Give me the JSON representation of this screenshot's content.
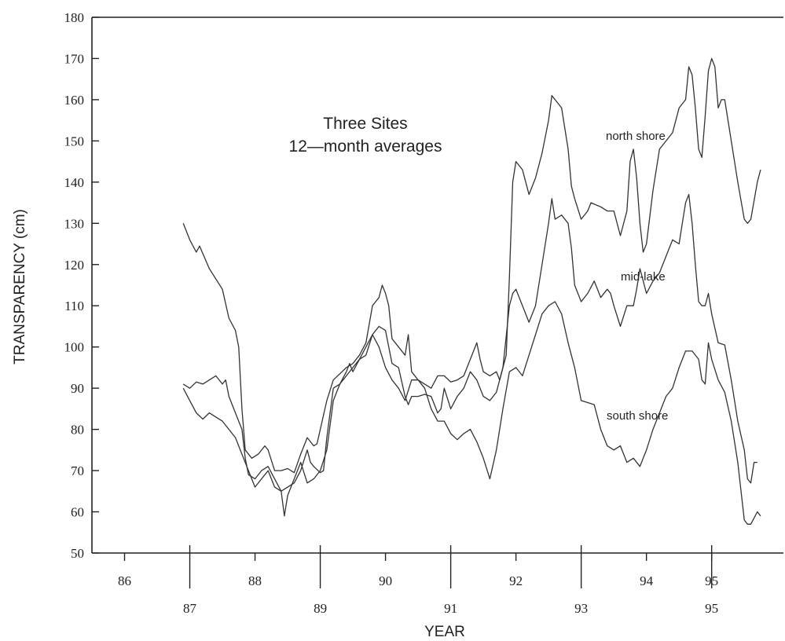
{
  "chart_data": {
    "type": "line",
    "title_lines": [
      "Three Sites",
      "12—month averages"
    ],
    "xlabel": "YEAR",
    "ylabel": "TRANSPARENCY (cm)",
    "xlim": [
      85.5,
      96.1
    ],
    "ylim": [
      50,
      180
    ],
    "x_ticks_upper": [
      "86",
      "88",
      "90",
      "92",
      "94",
      "95"
    ],
    "x_ticks_upper_values": [
      86,
      88,
      90,
      92,
      94,
      95
    ],
    "x_ticks_lower": [
      "87",
      "89",
      "91",
      "93",
      "95"
    ],
    "x_ticks_lower_values": [
      87,
      89,
      91,
      93,
      95
    ],
    "y_ticks": [
      50,
      60,
      70,
      80,
      90,
      100,
      110,
      120,
      130,
      140,
      150,
      160,
      170,
      180
    ],
    "grid": false,
    "legend": "none",
    "series": [
      {
        "name": "north shore",
        "points": [
          [
            86.9,
            130
          ],
          [
            87.0,
            126
          ],
          [
            87.1,
            123
          ],
          [
            87.15,
            124.5
          ],
          [
            87.3,
            119
          ],
          [
            87.5,
            114
          ],
          [
            87.6,
            107
          ],
          [
            87.7,
            104
          ],
          [
            87.75,
            100
          ],
          [
            87.8,
            85
          ],
          [
            87.85,
            75
          ],
          [
            87.95,
            73
          ],
          [
            88.05,
            74
          ],
          [
            88.15,
            76
          ],
          [
            88.2,
            75
          ],
          [
            88.3,
            70
          ],
          [
            88.4,
            70
          ],
          [
            88.5,
            70.5
          ],
          [
            88.6,
            69.5
          ],
          [
            88.7,
            74
          ],
          [
            88.8,
            78
          ],
          [
            88.9,
            76
          ],
          [
            88.95,
            76.5
          ],
          [
            89.0,
            80
          ],
          [
            89.1,
            87
          ],
          [
            89.2,
            92
          ],
          [
            89.3,
            93.5
          ],
          [
            89.4,
            95
          ],
          [
            89.5,
            96
          ],
          [
            89.6,
            98
          ],
          [
            89.7,
            101
          ],
          [
            89.8,
            110
          ],
          [
            89.85,
            111
          ],
          [
            89.9,
            112
          ],
          [
            89.95,
            115
          ],
          [
            90.0,
            113
          ],
          [
            90.05,
            110
          ],
          [
            90.1,
            102
          ],
          [
            90.2,
            100
          ],
          [
            90.3,
            98
          ],
          [
            90.35,
            103
          ],
          [
            90.4,
            94
          ],
          [
            90.5,
            92
          ],
          [
            90.6,
            91
          ],
          [
            90.7,
            90
          ],
          [
            90.8,
            93
          ],
          [
            90.9,
            93
          ],
          [
            91.0,
            91.5
          ],
          [
            91.1,
            92
          ],
          [
            91.2,
            93
          ],
          [
            91.3,
            97
          ],
          [
            91.4,
            101
          ],
          [
            91.45,
            97
          ],
          [
            91.5,
            94
          ],
          [
            91.6,
            93
          ],
          [
            91.7,
            94
          ],
          [
            91.75,
            92
          ],
          [
            91.85,
            98
          ],
          [
            91.9,
            117
          ],
          [
            91.95,
            140
          ],
          [
            92.0,
            145
          ],
          [
            92.1,
            143
          ],
          [
            92.2,
            137
          ],
          [
            92.3,
            141
          ],
          [
            92.4,
            147
          ],
          [
            92.5,
            155
          ],
          [
            92.55,
            161
          ],
          [
            92.6,
            160
          ],
          [
            92.7,
            158
          ],
          [
            92.8,
            148
          ],
          [
            92.85,
            139
          ],
          [
            92.9,
            136
          ],
          [
            93.0,
            131
          ],
          [
            93.1,
            133
          ],
          [
            93.15,
            135
          ],
          [
            93.3,
            134
          ],
          [
            93.4,
            133
          ],
          [
            93.5,
            133
          ],
          [
            93.6,
            127
          ],
          [
            93.7,
            133
          ],
          [
            93.75,
            145
          ],
          [
            93.8,
            148
          ],
          [
            93.85,
            141
          ],
          [
            93.9,
            130
          ],
          [
            93.95,
            123
          ],
          [
            94.0,
            125
          ],
          [
            94.1,
            138
          ],
          [
            94.2,
            148
          ],
          [
            94.3,
            150
          ],
          [
            94.4,
            152
          ],
          [
            94.5,
            158
          ],
          [
            94.6,
            160
          ],
          [
            94.65,
            168
          ],
          [
            94.7,
            166
          ],
          [
            94.75,
            158
          ],
          [
            94.8,
            148
          ],
          [
            94.85,
            146
          ],
          [
            94.9,
            156
          ],
          [
            94.95,
            167
          ],
          [
            95.0,
            170
          ],
          [
            95.05,
            168
          ],
          [
            95.1,
            158
          ],
          [
            95.15,
            160
          ],
          [
            95.2,
            160
          ],
          [
            95.3,
            150
          ],
          [
            95.4,
            140
          ],
          [
            95.5,
            131
          ],
          [
            95.55,
            130
          ],
          [
            95.6,
            131
          ],
          [
            95.7,
            140
          ],
          [
            95.75,
            143
          ]
        ]
      },
      {
        "name": "mid-lake",
        "points": [
          [
            86.9,
            91
          ],
          [
            87.0,
            90
          ],
          [
            87.1,
            91.5
          ],
          [
            87.2,
            91
          ],
          [
            87.3,
            92
          ],
          [
            87.4,
            93
          ],
          [
            87.5,
            91
          ],
          [
            87.55,
            92
          ],
          [
            87.6,
            88
          ],
          [
            87.7,
            84
          ],
          [
            87.8,
            80
          ],
          [
            87.85,
            73
          ],
          [
            87.9,
            69
          ],
          [
            88.0,
            68
          ],
          [
            88.1,
            70
          ],
          [
            88.2,
            71
          ],
          [
            88.3,
            68
          ],
          [
            88.4,
            65
          ],
          [
            88.5,
            66
          ],
          [
            88.6,
            67
          ],
          [
            88.7,
            70
          ],
          [
            88.8,
            75
          ],
          [
            88.85,
            72
          ],
          [
            88.9,
            71
          ],
          [
            89.0,
            69.5
          ],
          [
            89.05,
            70
          ],
          [
            89.1,
            78
          ],
          [
            89.2,
            90
          ],
          [
            89.3,
            91
          ],
          [
            89.4,
            94
          ],
          [
            89.45,
            96
          ],
          [
            89.5,
            94
          ],
          [
            89.6,
            97
          ],
          [
            89.7,
            98
          ],
          [
            89.8,
            103
          ],
          [
            89.85,
            104
          ],
          [
            89.9,
            105
          ],
          [
            90.0,
            104
          ],
          [
            90.1,
            96
          ],
          [
            90.2,
            95
          ],
          [
            90.3,
            88
          ],
          [
            90.35,
            86
          ],
          [
            90.4,
            88
          ],
          [
            90.5,
            88
          ],
          [
            90.6,
            88.5
          ],
          [
            90.7,
            88
          ],
          [
            90.8,
            84
          ],
          [
            90.85,
            85
          ],
          [
            90.9,
            90
          ],
          [
            91.0,
            85
          ],
          [
            91.1,
            88
          ],
          [
            91.2,
            90
          ],
          [
            91.3,
            94
          ],
          [
            91.4,
            92
          ],
          [
            91.5,
            88
          ],
          [
            91.6,
            87
          ],
          [
            91.7,
            89
          ],
          [
            91.8,
            95
          ],
          [
            91.9,
            110
          ],
          [
            91.95,
            113
          ],
          [
            92.0,
            114
          ],
          [
            92.1,
            110
          ],
          [
            92.2,
            106
          ],
          [
            92.3,
            110
          ],
          [
            92.4,
            120
          ],
          [
            92.5,
            130
          ],
          [
            92.55,
            136
          ],
          [
            92.6,
            131
          ],
          [
            92.7,
            132
          ],
          [
            92.8,
            130
          ],
          [
            92.85,
            124
          ],
          [
            92.9,
            115
          ],
          [
            93.0,
            111
          ],
          [
            93.1,
            113
          ],
          [
            93.2,
            116
          ],
          [
            93.3,
            112
          ],
          [
            93.4,
            114
          ],
          [
            93.45,
            113
          ],
          [
            93.5,
            110
          ],
          [
            93.6,
            105
          ],
          [
            93.7,
            110
          ],
          [
            93.8,
            110
          ],
          [
            93.85,
            114
          ],
          [
            93.9,
            119
          ],
          [
            94.0,
            113
          ],
          [
            94.1,
            116
          ],
          [
            94.2,
            118
          ],
          [
            94.3,
            122
          ],
          [
            94.4,
            126
          ],
          [
            94.5,
            125
          ],
          [
            94.55,
            130
          ],
          [
            94.6,
            135
          ],
          [
            94.65,
            137
          ],
          [
            94.7,
            130
          ],
          [
            94.75,
            120
          ],
          [
            94.8,
            111
          ],
          [
            94.85,
            110
          ],
          [
            94.9,
            110
          ],
          [
            94.95,
            113
          ],
          [
            95.0,
            108
          ],
          [
            95.1,
            101
          ],
          [
            95.2,
            100.5
          ],
          [
            95.3,
            92
          ],
          [
            95.4,
            82
          ],
          [
            95.5,
            75
          ],
          [
            95.55,
            68
          ],
          [
            95.6,
            67
          ],
          [
            95.65,
            72
          ],
          [
            95.7,
            72
          ]
        ]
      },
      {
        "name": "south shore",
        "points": [
          [
            86.9,
            90
          ],
          [
            87.0,
            87
          ],
          [
            87.1,
            84
          ],
          [
            87.2,
            82.5
          ],
          [
            87.3,
            84
          ],
          [
            87.4,
            83
          ],
          [
            87.5,
            82
          ],
          [
            87.6,
            80
          ],
          [
            87.7,
            78
          ],
          [
            87.8,
            74
          ],
          [
            87.9,
            70
          ],
          [
            88.0,
            66
          ],
          [
            88.1,
            68
          ],
          [
            88.2,
            70
          ],
          [
            88.3,
            66
          ],
          [
            88.4,
            65
          ],
          [
            88.45,
            59
          ],
          [
            88.5,
            64
          ],
          [
            88.6,
            68
          ],
          [
            88.7,
            72
          ],
          [
            88.8,
            67
          ],
          [
            88.9,
            68
          ],
          [
            89.0,
            70
          ],
          [
            89.1,
            75
          ],
          [
            89.2,
            87
          ],
          [
            89.3,
            91
          ],
          [
            89.4,
            93
          ],
          [
            89.5,
            95
          ],
          [
            89.6,
            97
          ],
          [
            89.7,
            100
          ],
          [
            89.8,
            103
          ],
          [
            89.9,
            100
          ],
          [
            90.0,
            95
          ],
          [
            90.1,
            92
          ],
          [
            90.2,
            90
          ],
          [
            90.3,
            87
          ],
          [
            90.4,
            92
          ],
          [
            90.5,
            92
          ],
          [
            90.6,
            90
          ],
          [
            90.7,
            85
          ],
          [
            90.8,
            82
          ],
          [
            90.9,
            82
          ],
          [
            91.0,
            79
          ],
          [
            91.1,
            77.5
          ],
          [
            91.2,
            79
          ],
          [
            91.3,
            80
          ],
          [
            91.4,
            77
          ],
          [
            91.5,
            73
          ],
          [
            91.6,
            68
          ],
          [
            91.7,
            75
          ],
          [
            91.8,
            85
          ],
          [
            91.9,
            94
          ],
          [
            92.0,
            95
          ],
          [
            92.1,
            93
          ],
          [
            92.2,
            98
          ],
          [
            92.3,
            103
          ],
          [
            92.4,
            108
          ],
          [
            92.5,
            110
          ],
          [
            92.6,
            111
          ],
          [
            92.7,
            108
          ],
          [
            92.8,
            101
          ],
          [
            92.9,
            95
          ],
          [
            93.0,
            87
          ],
          [
            93.1,
            86.5
          ],
          [
            93.2,
            86
          ],
          [
            93.3,
            80
          ],
          [
            93.4,
            76
          ],
          [
            93.5,
            75
          ],
          [
            93.6,
            76
          ],
          [
            93.7,
            72
          ],
          [
            93.8,
            73
          ],
          [
            93.9,
            71
          ],
          [
            94.0,
            75
          ],
          [
            94.1,
            80
          ],
          [
            94.2,
            84
          ],
          [
            94.3,
            88
          ],
          [
            94.4,
            90
          ],
          [
            94.5,
            95
          ],
          [
            94.6,
            99
          ],
          [
            94.7,
            99
          ],
          [
            94.8,
            97
          ],
          [
            94.85,
            92
          ],
          [
            94.9,
            91
          ],
          [
            94.95,
            101
          ],
          [
            95.0,
            97
          ],
          [
            95.1,
            92
          ],
          [
            95.2,
            89
          ],
          [
            95.3,
            82
          ],
          [
            95.4,
            72
          ],
          [
            95.5,
            58
          ],
          [
            95.55,
            57
          ],
          [
            95.6,
            57
          ],
          [
            95.7,
            60
          ],
          [
            95.75,
            59
          ]
        ]
      }
    ],
    "annotations": [
      "north shore",
      "mid-lake",
      "south shore"
    ]
  }
}
